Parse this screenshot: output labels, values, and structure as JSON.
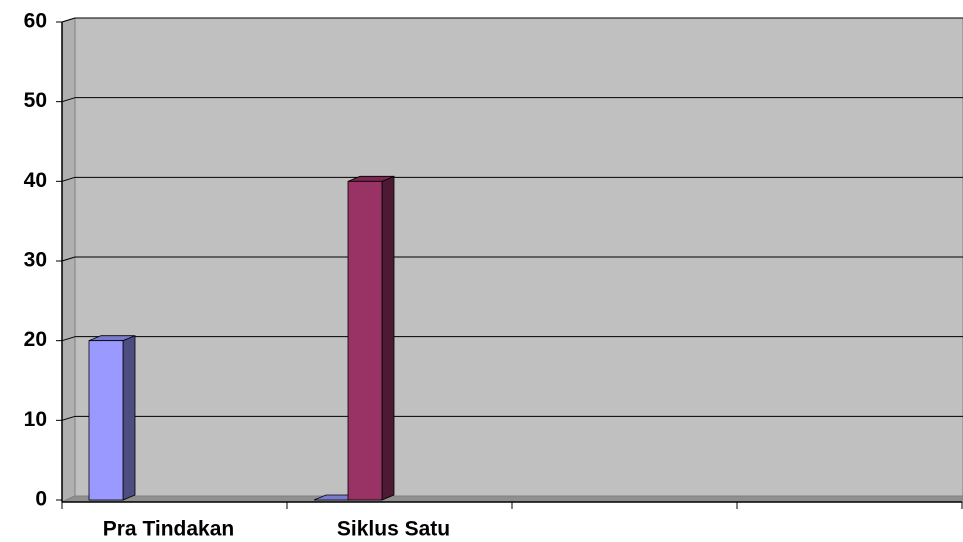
{
  "chart_data": {
    "type": "bar3d",
    "categories": [
      "Pra Tindakan",
      "Siklus Satu",
      null,
      null
    ],
    "series": [
      {
        "color": "#9999ff",
        "values": [
          20,
          0,
          null,
          null
        ]
      },
      {
        "color": "#993366",
        "values": [
          null,
          40,
          null,
          null
        ]
      }
    ],
    "ylim": [
      0,
      60
    ],
    "yticks": [
      0,
      10,
      20,
      30,
      40,
      50,
      60
    ],
    "grid": true
  }
}
